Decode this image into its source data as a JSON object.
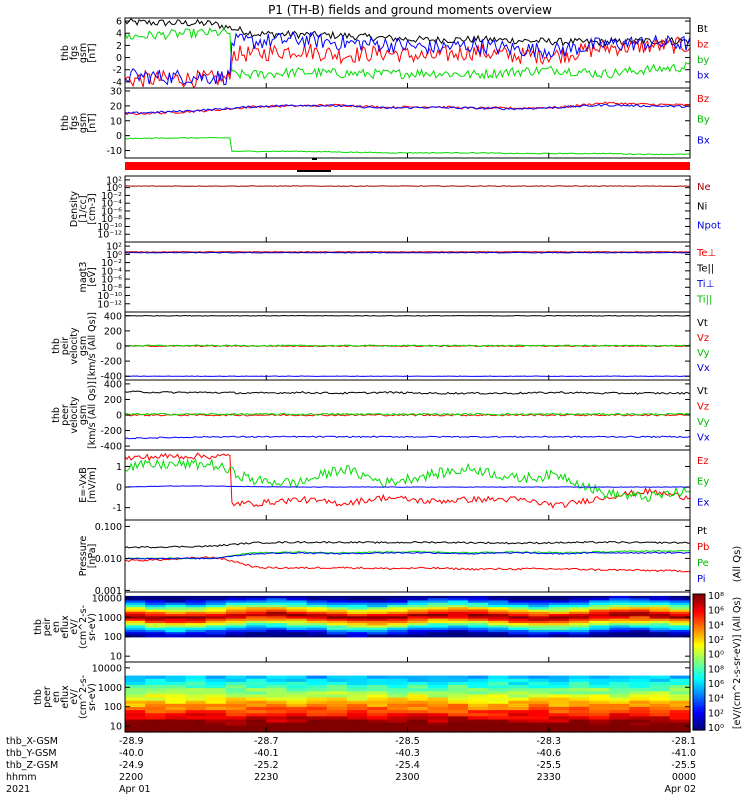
{
  "title": "P1 (TH-B) fields and ground moments overview",
  "chart_data": [
    {
      "id": "fgs_gsm",
      "type": "line",
      "ylabel": [
        "thb",
        "fgs",
        "gsm",
        "[nT]"
      ],
      "yticks": [
        6,
        4,
        2,
        0,
        -2,
        -4
      ],
      "ylim": [
        -5,
        6.5
      ],
      "legend": [
        "Bt",
        "bz",
        "by",
        "bx"
      ],
      "series": [
        {
          "name": "Bt",
          "color": "#000000",
          "level": [
            5.8,
            5.7,
            5.6,
            3.9,
            3.8,
            3.6,
            3.2,
            2.9,
            3.0,
            2.8,
            2.6,
            2.5,
            2.7,
            2.8
          ],
          "noise": 0.6
        },
        {
          "name": "bz",
          "color": "#ff0000",
          "level": [
            -3.6,
            -3.5,
            -3.5,
            0.6,
            1.3,
            0.4,
            0.8,
            0.1,
            1.0,
            0.3,
            0.4,
            1.6,
            1.9,
            2.0
          ],
          "noise": 1.4
        },
        {
          "name": "by",
          "color": "#00dd00",
          "level": [
            3.4,
            3.8,
            4.1,
            -2.8,
            -2.4,
            -2.6,
            -2.7,
            -2.5,
            -2.8,
            -2.3,
            -2.0,
            -2.7,
            -2.0,
            -1.5
          ],
          "noise": 0.8
        },
        {
          "name": "bx",
          "color": "#0000ff",
          "level": [
            -3.0,
            -3.2,
            -3.2,
            2.6,
            3.0,
            2.4,
            2.2,
            1.6,
            2.0,
            1.4,
            1.2,
            2.2,
            2.4,
            2.3
          ],
          "noise": 1.3
        }
      ]
    },
    {
      "id": "fgs_gsm_total",
      "type": "line",
      "ylabel": [
        "thb",
        "fgs",
        "gsm",
        "[nT]"
      ],
      "yticks": [
        30,
        20,
        10,
        0,
        -10
      ],
      "ylim": [
        -15,
        32
      ],
      "legend": [
        "Bz",
        "By",
        "Bx"
      ],
      "series": [
        {
          "name": "Bz",
          "color": "#ff0000",
          "level": [
            14.5,
            15.5,
            17.0,
            19.5,
            20.0,
            20.5,
            19.0,
            19.5,
            18.5,
            18.5,
            19.0,
            22.0,
            21.0,
            20.5
          ],
          "noise": 0.8
        },
        {
          "name": "By",
          "color": "#00dd00",
          "level": [
            -2.0,
            -1.5,
            -1.5,
            -10.5,
            -10.5,
            -11.0,
            -11.5,
            -11.5,
            -11.5,
            -12.0,
            -12.0,
            -12.0,
            -12.5,
            -12.5
          ],
          "noise": 0.3
        },
        {
          "name": "Bx",
          "color": "#0000ff",
          "level": [
            15.0,
            16.0,
            17.5,
            19.5,
            20.5,
            20.0,
            18.5,
            19.0,
            18.5,
            18.0,
            19.0,
            20.5,
            20.0,
            19.5
          ],
          "noise": 0.7
        }
      ]
    },
    {
      "id": "density",
      "type": "line",
      "ylabel": [
        "Density",
        "[1/cc]",
        "[cm-3]"
      ],
      "yticks": [
        "10²",
        "10⁰",
        "10⁻²",
        "10⁻⁴",
        "10⁻⁶",
        "10⁻⁸",
        "10⁻¹⁰",
        "10⁻¹²"
      ],
      "ylim": [
        -14,
        3
      ],
      "legend": [
        "Ne",
        "Ni",
        "Npot"
      ],
      "series": [
        {
          "name": "Ne",
          "color": "#a00000",
          "log_level": 0.4
        }
      ]
    },
    {
      "id": "temperature",
      "type": "line",
      "ylabel": [
        "magt3",
        "[eV]"
      ],
      "yticks": [
        "10²",
        "10⁰",
        "10⁻²",
        "10⁻⁴",
        "10⁻⁶",
        "10⁻⁸",
        "10⁻¹⁰",
        "10⁻¹²"
      ],
      "ylim": [
        -14,
        3
      ],
      "legend": [
        "Te⊥",
        "Te||",
        "Ti⊥",
        "Ti||"
      ],
      "series": [
        {
          "name": "Te⊥",
          "color": "#cc0000",
          "log_level": 0.6
        },
        {
          "name": "Ti||",
          "color": "#0000cc",
          "log_level": 0.4
        }
      ]
    },
    {
      "id": "peir_velocity",
      "type": "line",
      "ylabel": [
        "thb",
        "peir",
        "velocity",
        "gsm",
        "[km/s (All Qs)]"
      ],
      "yticks": [
        400,
        200,
        0,
        -200,
        -400
      ],
      "ylim": [
        -450,
        450
      ],
      "legend": [
        "Vt",
        "Vz",
        "Vy",
        "Vx"
      ],
      "series": [
        {
          "name": "Vt",
          "color": "#000000",
          "level": [
            400
          ],
          "noise": 4
        },
        {
          "name": "Vz",
          "color": "#ff0000",
          "level": [
            0
          ],
          "noise": 8
        },
        {
          "name": "Vy",
          "color": "#00dd00",
          "level": [
            5
          ],
          "noise": 8
        },
        {
          "name": "Vx",
          "color": "#0000ff",
          "level": [
            -400
          ],
          "noise": 3
        }
      ]
    },
    {
      "id": "peer_velocity",
      "type": "line",
      "ylabel": [
        "thb",
        "peer",
        "velocity",
        "gsm",
        "[km/s (All Qs)]"
      ],
      "yticks": [
        400,
        200,
        0,
        -200,
        -400
      ],
      "ylim": [
        -450,
        450
      ],
      "legend": [
        "Vt",
        "Vz",
        "Vy",
        "Vx"
      ],
      "series": [
        {
          "name": "Vt",
          "color": "#000000",
          "level": [
            300,
            290,
            290,
            280,
            290,
            280,
            290,
            280,
            280,
            280,
            290,
            280,
            280,
            280
          ],
          "noise": 12
        },
        {
          "name": "Vz",
          "color": "#ff0000",
          "level": [
            0
          ],
          "noise": 12
        },
        {
          "name": "Vy",
          "color": "#00dd00",
          "level": [
            10
          ],
          "noise": 12
        },
        {
          "name": "Vx",
          "color": "#0000ff",
          "level": [
            -300,
            -290,
            -280,
            -280,
            -280,
            -280,
            -280,
            -280,
            -280,
            -280,
            -280,
            -280,
            -280,
            -280
          ],
          "noise": 8
        }
      ]
    },
    {
      "id": "efield",
      "type": "line",
      "ylabel": [
        "E=-VxB",
        "[mV/m]"
      ],
      "yticks": [
        1,
        0,
        -1
      ],
      "ylim": [
        -1.6,
        1.8
      ],
      "legend": [
        "Ez",
        "Ey",
        "Ex"
      ],
      "series": [
        {
          "name": "Ez",
          "color": "#ff0000",
          "level": [
            1.4,
            1.5,
            1.5,
            -0.8,
            -0.6,
            -0.8,
            -0.5,
            -0.7,
            -0.6,
            -0.6,
            -0.9,
            -0.5,
            -0.2,
            -0.5
          ],
          "noise": 0.15
        },
        {
          "name": "Ey",
          "color": "#00dd00",
          "level": [
            1.0,
            1.1,
            1.1,
            0.3,
            0.2,
            0.9,
            0.2,
            0.6,
            0.9,
            0.4,
            0.6,
            -0.3,
            -0.5,
            -0.2
          ],
          "noise": 0.25
        },
        {
          "name": "Ex",
          "color": "#0000ff",
          "level": [
            0.0,
            0.05,
            0.05,
            0.02,
            0.0,
            0.0,
            0.0,
            0.0,
            0.0,
            0.0,
            0.0,
            0.0,
            0.0,
            0.0
          ],
          "noise": 0.01
        }
      ]
    },
    {
      "id": "pressure",
      "type": "line",
      "ylabel": [
        "Pressure",
        "[nPa]"
      ],
      "yticks": [
        "0.100",
        "0.010",
        "0.001"
      ],
      "ylim": [
        -3.05,
        -0.8
      ],
      "legend": [
        "Pt",
        "Pb",
        "Pe",
        "Pi"
      ],
      "legend_note": "(All Qs)",
      "series": [
        {
          "name": "Pt",
          "color": "#000000",
          "level": [
            0.022,
            0.023,
            0.024,
            0.031,
            0.032,
            0.032,
            0.031,
            0.032,
            0.031,
            0.03,
            0.031,
            0.032,
            0.031,
            0.031
          ],
          "noise": 0.05
        },
        {
          "name": "Pb",
          "color": "#ff0000",
          "level": [
            0.0085,
            0.0092,
            0.011,
            0.0052,
            0.005,
            0.0052,
            0.0048,
            0.005,
            0.0046,
            0.0047,
            0.0047,
            0.0044,
            0.0042,
            0.004
          ],
          "noise": 0.06
        },
        {
          "name": "Pe",
          "color": "#00dd00",
          "level": [
            0.01,
            0.01,
            0.01,
            0.015,
            0.016,
            0.015,
            0.016,
            0.016,
            0.015,
            0.016,
            0.015,
            0.016,
            0.017,
            0.017
          ],
          "noise": 0.04
        },
        {
          "name": "Pi",
          "color": "#0000ff",
          "level": [
            0.01,
            0.01,
            0.01,
            0.014,
            0.015,
            0.014,
            0.015,
            0.015,
            0.014,
            0.015,
            0.014,
            0.015,
            0.015,
            0.015
          ],
          "noise": 0.04
        }
      ]
    },
    {
      "id": "peir_eflux",
      "type": "heatmap",
      "ylabel": [
        "thb",
        "peir",
        "en",
        "eflux",
        "eV/",
        "(cm^2-s-",
        "sr-eV)"
      ],
      "yticks": [
        "10000",
        "1000",
        "100",
        "10"
      ],
      "ylim": [
        0.7,
        4.3
      ],
      "ydomain": [
        2.0,
        4.1
      ]
    },
    {
      "id": "peer_eflux",
      "type": "heatmap",
      "ylabel": [
        "thb",
        "peer",
        "en",
        "eflux",
        "eV/",
        "(cm^2-s-",
        "sr-eV)"
      ],
      "yticks": [
        "10000",
        "1000",
        "100",
        "10"
      ],
      "ylim": [
        0.7,
        4.3
      ],
      "ydomain": [
        0.7,
        3.6
      ]
    }
  ],
  "colorbar": {
    "label": "[eV/(cm^2-s-sr-eV)] (All Qs)",
    "ticks": [
      "10⁸",
      "10⁶",
      "10⁴",
      "10²",
      "10⁰",
      "10⁸",
      "10⁶",
      "10⁴",
      "10²",
      "10⁰"
    ]
  },
  "ephemeris": {
    "labels": [
      "thb_X-GSM",
      "thb_Y-GSM",
      "thb_Z-GSM",
      "hhmm",
      "2021"
    ],
    "columns": [
      {
        "x": "-28.9",
        "y": "-40.0",
        "z": "-24.9",
        "hhmm": "2200",
        "date": "Apr 01"
      },
      {
        "x": "-28.7",
        "y": "-40.1",
        "z": "-25.2",
        "hhmm": "2230",
        "date": ""
      },
      {
        "x": "-28.5",
        "y": "-40.3",
        "z": "-25.4",
        "hhmm": "2300",
        "date": ""
      },
      {
        "x": "-28.3",
        "y": "-40.6",
        "z": "-25.5",
        "hhmm": "2330",
        "date": ""
      },
      {
        "x": "-28.1",
        "y": "-41.0",
        "z": "-25.5",
        "hhmm": "0000",
        "date": "Apr 02"
      }
    ]
  },
  "flag_bar": {
    "color": "#ff0000"
  }
}
